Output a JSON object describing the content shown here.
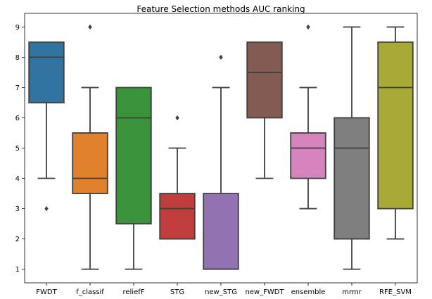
{
  "chart_data": {
    "type": "box",
    "title": "Feature Selection methods AUC ranking",
    "xlabel": "",
    "ylabel": "",
    "ylim": [
      0.55,
      9.45
    ],
    "yticks": [
      1,
      2,
      3,
      4,
      5,
      6,
      7,
      8,
      9
    ],
    "grid": false,
    "categories": [
      "FWDT",
      "f_classif",
      "reliefF",
      "STG",
      "new_STG",
      "new_FWDT",
      "ensemble",
      "mrmr",
      "RFE_SVM"
    ],
    "boxes": [
      {
        "category": "FWDT",
        "whisker_low": 4,
        "q1": 6.5,
        "median": 8,
        "q3": 8.5,
        "whisker_high": 8.5,
        "outliers": [
          3
        ],
        "color": "#3274a1"
      },
      {
        "category": "f_classif",
        "whisker_low": 1,
        "q1": 3.5,
        "median": 4,
        "q3": 5.5,
        "whisker_high": 7,
        "outliers": [
          9
        ],
        "color": "#e1812c"
      },
      {
        "category": "reliefF",
        "whisker_low": 1,
        "q1": 2.5,
        "median": 6,
        "q3": 7,
        "whisker_high": 7,
        "outliers": [],
        "color": "#3a923a"
      },
      {
        "category": "STG",
        "whisker_low": 2,
        "q1": 2,
        "median": 3,
        "q3": 3.5,
        "whisker_high": 5,
        "outliers": [
          6
        ],
        "color": "#c03d3e"
      },
      {
        "category": "new_STG",
        "whisker_low": 1,
        "q1": 1,
        "median": 1,
        "q3": 3.5,
        "whisker_high": 7,
        "outliers": [
          8
        ],
        "color": "#9372b2"
      },
      {
        "category": "new_FWDT",
        "whisker_low": 4,
        "q1": 6,
        "median": 7.5,
        "q3": 8.5,
        "whisker_high": 8.5,
        "outliers": [],
        "color": "#845b53"
      },
      {
        "category": "ensemble",
        "whisker_low": 3,
        "q1": 4,
        "median": 5,
        "q3": 5.5,
        "whisker_high": 7,
        "outliers": [
          9
        ],
        "color": "#d684bd"
      },
      {
        "category": "mrmr",
        "whisker_low": 1,
        "q1": 2,
        "median": 5,
        "q3": 6,
        "whisker_high": 9,
        "outliers": [],
        "color": "#7f7f7f"
      },
      {
        "category": "RFE_SVM",
        "whisker_low": 2,
        "q1": 3,
        "median": 7,
        "q3": 8.5,
        "whisker_high": 9,
        "outliers": [],
        "color": "#a9aa35"
      }
    ]
  }
}
